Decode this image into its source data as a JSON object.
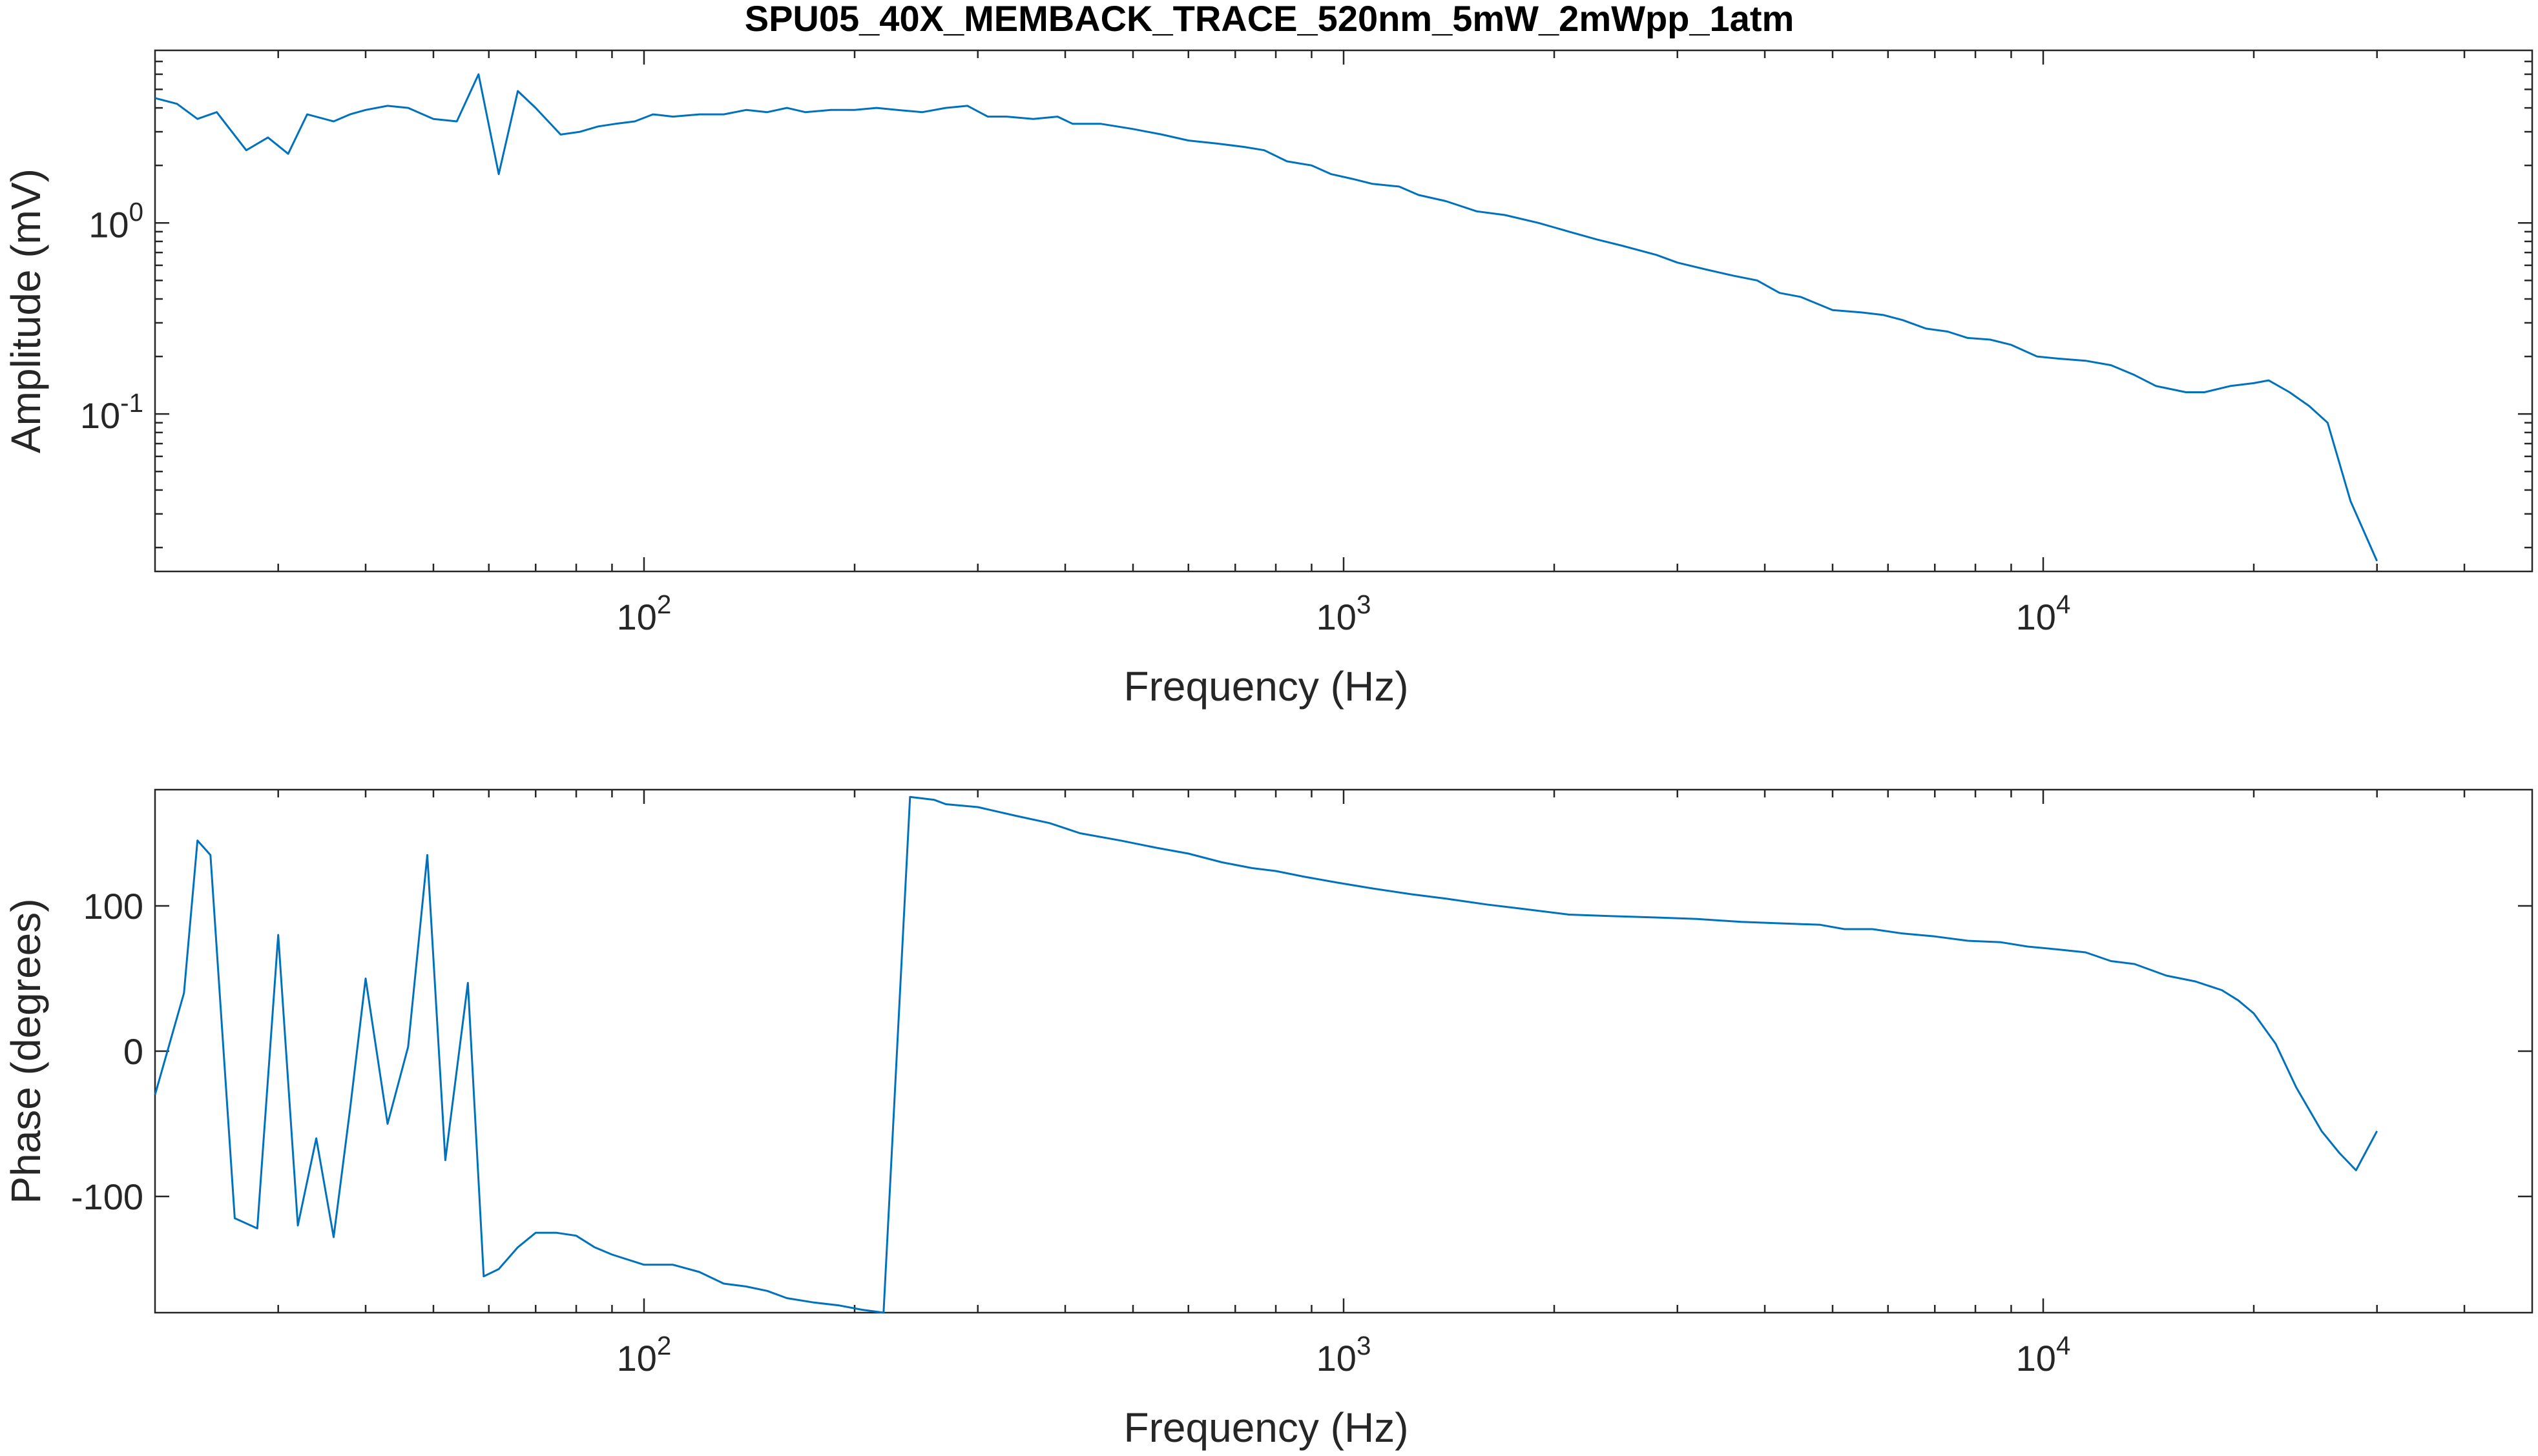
{
  "figure": {
    "title": "SPU05_40X_MEMBACK_TRACE_520nm_5mW_2mWpp_1atm"
  },
  "chart_data": [
    {
      "type": "line",
      "title": "SPU05_40X_MEMBACK_TRACE_520nm_5mW_2mWpp_1atm",
      "xlabel": "Frequency (Hz)",
      "ylabel": "Amplitude (mV)",
      "xscale": "log",
      "yscale": "log",
      "xlim": [
        20,
        50000
      ],
      "ylim": [
        0.015,
        8
      ],
      "xticks": [
        {
          "value": 100,
          "base": "10",
          "exp": "2"
        },
        {
          "value": 1000,
          "base": "10",
          "exp": "3"
        },
        {
          "value": 10000,
          "base": "10",
          "exp": "4"
        }
      ],
      "yticks": [
        {
          "value": 0.1,
          "base": "10",
          "exp": "-1"
        },
        {
          "value": 1,
          "base": "10",
          "exp": "0"
        }
      ],
      "grid": false,
      "color": "#0072BD",
      "series": [
        {
          "x": [
            20,
            21.5,
            23,
            24.5,
            27,
            29,
            31,
            33,
            36,
            38,
            40,
            43,
            46,
            50,
            54,
            58,
            62,
            66,
            70,
            76,
            81,
            86,
            91,
            97,
            103,
            110,
            120,
            130,
            140,
            150,
            160,
            170,
            185,
            200,
            215,
            230,
            250,
            270,
            290,
            310,
            330,
            360,
            390,
            410,
            450,
            500,
            550,
            600,
            660,
            720,
            770,
            830,
            900,
            960,
            1030,
            1100,
            1200,
            1280,
            1400,
            1550,
            1700,
            1900,
            2100,
            2300,
            2500,
            2800,
            3000,
            3300,
            3600,
            3900,
            4200,
            4500,
            5000,
            5500,
            5900,
            6300,
            6800,
            7300,
            7800,
            8400,
            9000,
            9800,
            10500,
            11500,
            12500,
            13500,
            14500,
            16000,
            17000,
            18500,
            20000,
            21000,
            22500,
            24000,
            25500,
            27500,
            30000
          ],
          "y": [
            4.5,
            4.2,
            3.5,
            3.8,
            2.4,
            2.8,
            2.3,
            3.7,
            3.4,
            3.7,
            3.9,
            4.1,
            4.0,
            3.5,
            3.4,
            6.0,
            1.8,
            4.9,
            4.0,
            2.9,
            3.0,
            3.2,
            3.3,
            3.4,
            3.7,
            3.6,
            3.7,
            3.7,
            3.9,
            3.8,
            4.0,
            3.8,
            3.9,
            3.9,
            4.0,
            3.9,
            3.8,
            4.0,
            4.1,
            3.6,
            3.6,
            3.5,
            3.6,
            3.3,
            3.3,
            3.1,
            2.9,
            2.7,
            2.6,
            2.5,
            2.4,
            2.1,
            2.0,
            1.8,
            1.7,
            1.6,
            1.55,
            1.4,
            1.3,
            1.15,
            1.1,
            1.0,
            0.9,
            0.82,
            0.76,
            0.68,
            0.62,
            0.57,
            0.53,
            0.5,
            0.43,
            0.41,
            0.35,
            0.34,
            0.33,
            0.31,
            0.28,
            0.27,
            0.25,
            0.245,
            0.23,
            0.2,
            0.195,
            0.19,
            0.18,
            0.16,
            0.14,
            0.13,
            0.13,
            0.14,
            0.145,
            0.15,
            0.13,
            0.11,
            0.09,
            0.035,
            0.017
          ]
        }
      ]
    },
    {
      "type": "line",
      "xlabel": "Frequency (Hz)",
      "ylabel": "Phase (degrees)",
      "xscale": "log",
      "yscale": "linear",
      "xlim": [
        20,
        50000
      ],
      "ylim": [
        -180,
        180
      ],
      "xticks": [
        {
          "value": 100,
          "base": "10",
          "exp": "2"
        },
        {
          "value": 1000,
          "base": "10",
          "exp": "3"
        },
        {
          "value": 10000,
          "base": "10",
          "exp": "4"
        }
      ],
      "yticks": [
        {
          "value": -100,
          "label": "-100"
        },
        {
          "value": 0,
          "label": "0"
        },
        {
          "value": 100,
          "label": "100"
        }
      ],
      "grid": false,
      "color": "#0072BD",
      "series": [
        {
          "x": [
            20,
            22,
            23,
            24,
            26,
            28,
            30,
            32,
            34,
            36,
            38,
            40,
            43,
            46,
            49,
            52,
            56,
            59,
            62,
            66,
            70,
            75,
            80,
            85,
            90,
            100,
            110,
            120,
            130,
            140,
            150,
            160,
            175,
            190,
            205,
            220,
            240,
            260,
            270,
            300,
            340,
            380,
            420,
            480,
            540,
            600,
            670,
            740,
            800,
            880,
            980,
            1100,
            1250,
            1400,
            1600,
            1800,
            2100,
            2400,
            2800,
            3200,
            3700,
            4200,
            4800,
            5200,
            5700,
            6300,
            7000,
            7800,
            8700,
            9500,
            10500,
            11500,
            12500,
            13500,
            15000,
            16500,
            18000,
            19000,
            20000,
            21500,
            23000,
            25000,
            26500,
            28000,
            30000
          ],
          "y": [
            -30,
            40,
            145,
            135,
            -115,
            -122,
            80,
            -120,
            -60,
            -128,
            -40,
            50,
            -50,
            3,
            135,
            -75,
            47,
            -155,
            -150,
            -135,
            -125,
            -125,
            -127,
            -135,
            -140,
            -147,
            -147,
            -152,
            -160,
            -162,
            -165,
            -170,
            -173,
            -175,
            -178,
            -180,
            175,
            173,
            170,
            168,
            162,
            157,
            150,
            145,
            140,
            136,
            130,
            126,
            124,
            120,
            116,
            112,
            108,
            105,
            101,
            98,
            94,
            93,
            92,
            91,
            89,
            88,
            87,
            84,
            84,
            81,
            79,
            76,
            75,
            72,
            70,
            68,
            62,
            60,
            52,
            48,
            42,
            35,
            26,
            5,
            -25,
            -55,
            -70,
            -82,
            -55
          ]
        }
      ]
    }
  ]
}
